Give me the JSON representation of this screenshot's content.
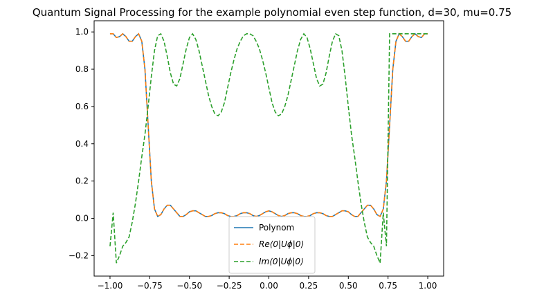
{
  "chart_data": {
    "type": "line",
    "title": "Quantum Signal Processing for the example polynomial even step function, d=30, mu=0.75",
    "xlabel": "",
    "ylabel": "",
    "xlim": [
      -1.1,
      1.1
    ],
    "ylim": [
      -0.31,
      1.06
    ],
    "x_ticks": [
      -1.0,
      -0.75,
      -0.5,
      -0.25,
      0.0,
      0.25,
      0.5,
      0.75,
      1.0
    ],
    "x_tick_labels": [
      "−1.00",
      "−0.75",
      "−0.50",
      "−0.25",
      "0.00",
      "0.25",
      "0.50",
      "0.75",
      "1.00"
    ],
    "y_ticks": [
      -0.2,
      0.0,
      0.2,
      0.4,
      0.6,
      0.8,
      1.0
    ],
    "y_tick_labels": [
      "−0.2",
      "0.0",
      "0.2",
      "0.4",
      "0.6",
      "0.8",
      "1.0"
    ],
    "grid": false,
    "legend_position": "bottom-center",
    "series": [
      {
        "name": "Polynom",
        "color": "#1f77b4",
        "style": "solid",
        "x": [
          -1.0,
          -0.98,
          -0.96,
          -0.94,
          -0.92,
          -0.9,
          -0.88,
          -0.86,
          -0.84,
          -0.82,
          -0.8,
          -0.78,
          -0.76,
          -0.74,
          -0.72,
          -0.7,
          -0.68,
          -0.66,
          -0.64,
          -0.62,
          -0.6,
          -0.58,
          -0.56,
          -0.54,
          -0.52,
          -0.5,
          -0.48,
          -0.46,
          -0.44,
          -0.42,
          -0.4,
          -0.38,
          -0.36,
          -0.34,
          -0.32,
          -0.3,
          -0.28,
          -0.26,
          -0.24,
          -0.22,
          -0.2,
          -0.18,
          -0.16,
          -0.14,
          -0.12,
          -0.1,
          -0.08,
          -0.06,
          -0.04,
          -0.02,
          0.0,
          0.02,
          0.04,
          0.06,
          0.08,
          0.1,
          0.12,
          0.14,
          0.16,
          0.18,
          0.2,
          0.22,
          0.24,
          0.26,
          0.28,
          0.3,
          0.32,
          0.34,
          0.36,
          0.38,
          0.4,
          0.42,
          0.44,
          0.46,
          0.48,
          0.5,
          0.52,
          0.54,
          0.56,
          0.58,
          0.6,
          0.62,
          0.64,
          0.66,
          0.68,
          0.7,
          0.72,
          0.74,
          0.76,
          0.78,
          0.8,
          0.82,
          0.84,
          0.86,
          0.88,
          0.9,
          0.92,
          0.94,
          0.96,
          0.98,
          1.0
        ],
        "y": [
          0.99,
          0.99,
          0.97,
          0.975,
          0.99,
          0.975,
          0.95,
          0.95,
          0.975,
          0.99,
          0.95,
          0.8,
          0.5,
          0.2,
          0.05,
          0.01,
          0.02,
          0.05,
          0.07,
          0.07,
          0.05,
          0.03,
          0.01,
          0.01,
          0.02,
          0.035,
          0.04,
          0.04,
          0.03,
          0.02,
          0.01,
          0.01,
          0.015,
          0.025,
          0.03,
          0.03,
          0.025,
          0.015,
          0.01,
          0.01,
          0.015,
          0.025,
          0.03,
          0.03,
          0.025,
          0.015,
          0.01,
          0.015,
          0.025,
          0.035,
          0.04,
          0.035,
          0.025,
          0.015,
          0.01,
          0.015,
          0.025,
          0.03,
          0.03,
          0.025,
          0.015,
          0.01,
          0.01,
          0.015,
          0.025,
          0.03,
          0.03,
          0.025,
          0.015,
          0.01,
          0.01,
          0.02,
          0.03,
          0.04,
          0.04,
          0.035,
          0.02,
          0.01,
          0.01,
          0.03,
          0.05,
          0.07,
          0.07,
          0.05,
          0.02,
          0.01,
          0.05,
          0.2,
          0.5,
          0.8,
          0.95,
          0.99,
          0.975,
          0.95,
          0.95,
          0.975,
          0.99,
          0.975,
          0.97,
          0.99,
          0.99
        ]
      },
      {
        "name": "Re⟨0|Uϕ|0⟩",
        "color": "#ff7f0e",
        "style": "dashed",
        "x": [
          -1.0,
          -0.98,
          -0.96,
          -0.94,
          -0.92,
          -0.9,
          -0.88,
          -0.86,
          -0.84,
          -0.82,
          -0.8,
          -0.78,
          -0.76,
          -0.74,
          -0.72,
          -0.7,
          -0.68,
          -0.66,
          -0.64,
          -0.62,
          -0.6,
          -0.58,
          -0.56,
          -0.54,
          -0.52,
          -0.5,
          -0.48,
          -0.46,
          -0.44,
          -0.42,
          -0.4,
          -0.38,
          -0.36,
          -0.34,
          -0.32,
          -0.3,
          -0.28,
          -0.26,
          -0.24,
          -0.22,
          -0.2,
          -0.18,
          -0.16,
          -0.14,
          -0.12,
          -0.1,
          -0.08,
          -0.06,
          -0.04,
          -0.02,
          0.0,
          0.02,
          0.04,
          0.06,
          0.08,
          0.1,
          0.12,
          0.14,
          0.16,
          0.18,
          0.2,
          0.22,
          0.24,
          0.26,
          0.28,
          0.3,
          0.32,
          0.34,
          0.36,
          0.38,
          0.4,
          0.42,
          0.44,
          0.46,
          0.48,
          0.5,
          0.52,
          0.54,
          0.56,
          0.58,
          0.6,
          0.62,
          0.64,
          0.66,
          0.68,
          0.7,
          0.72,
          0.74,
          0.76,
          0.78,
          0.8,
          0.82,
          0.84,
          0.86,
          0.88,
          0.9,
          0.92,
          0.94,
          0.96,
          0.98,
          1.0
        ],
        "y": [
          0.99,
          0.99,
          0.97,
          0.975,
          0.99,
          0.975,
          0.95,
          0.95,
          0.975,
          0.99,
          0.95,
          0.8,
          0.5,
          0.2,
          0.05,
          0.01,
          0.02,
          0.05,
          0.07,
          0.07,
          0.05,
          0.03,
          0.01,
          0.01,
          0.02,
          0.035,
          0.04,
          0.04,
          0.03,
          0.02,
          0.01,
          0.01,
          0.015,
          0.025,
          0.03,
          0.03,
          0.025,
          0.015,
          0.01,
          0.01,
          0.015,
          0.025,
          0.03,
          0.03,
          0.025,
          0.015,
          0.01,
          0.015,
          0.025,
          0.035,
          0.04,
          0.035,
          0.025,
          0.015,
          0.01,
          0.015,
          0.025,
          0.03,
          0.03,
          0.025,
          0.015,
          0.01,
          0.01,
          0.015,
          0.025,
          0.03,
          0.03,
          0.025,
          0.015,
          0.01,
          0.01,
          0.02,
          0.03,
          0.04,
          0.04,
          0.035,
          0.02,
          0.01,
          0.01,
          0.03,
          0.05,
          0.07,
          0.07,
          0.05,
          0.02,
          0.01,
          0.05,
          0.2,
          0.5,
          0.8,
          0.95,
          0.99,
          0.975,
          0.95,
          0.95,
          0.975,
          0.99,
          0.975,
          0.97,
          0.99,
          0.99
        ]
      },
      {
        "name": "Im⟨0|Uϕ|0⟩",
        "color": "#2ca02c",
        "style": "dashed",
        "x": [
          -1.0,
          -0.98,
          -0.96,
          -0.94,
          -0.92,
          -0.9,
          -0.88,
          -0.86,
          -0.84,
          -0.82,
          -0.8,
          -0.78,
          -0.76,
          -0.74,
          -0.72,
          -0.7,
          -0.68,
          -0.66,
          -0.64,
          -0.62,
          -0.6,
          -0.58,
          -0.56,
          -0.54,
          -0.52,
          -0.5,
          -0.48,
          -0.46,
          -0.44,
          -0.42,
          -0.4,
          -0.38,
          -0.36,
          -0.34,
          -0.32,
          -0.3,
          -0.28,
          -0.26,
          -0.24,
          -0.22,
          -0.2,
          -0.18,
          -0.16,
          -0.14,
          -0.12,
          -0.1,
          -0.08,
          -0.06,
          -0.04,
          -0.02,
          0.0,
          0.02,
          0.04,
          0.06,
          0.08,
          0.1,
          0.12,
          0.14,
          0.16,
          0.18,
          0.2,
          0.22,
          0.24,
          0.26,
          0.28,
          0.3,
          0.32,
          0.34,
          0.36,
          0.38,
          0.4,
          0.42,
          0.44,
          0.46,
          0.48,
          0.5,
          0.52,
          0.54,
          0.56,
          0.58,
          0.6,
          0.62,
          0.64,
          0.66,
          0.68,
          0.7,
          0.72,
          0.74,
          0.76,
          0.78,
          0.8,
          0.82,
          0.84,
          0.86,
          0.88,
          0.9,
          0.92,
          0.94,
          0.96,
          0.98,
          1.0
        ],
        "y": [
          -0.15,
          0.03,
          -0.24,
          -0.2,
          -0.15,
          -0.13,
          -0.1,
          -0.02,
          0.08,
          0.2,
          0.33,
          0.45,
          0.6,
          0.76,
          0.9,
          0.98,
          0.99,
          0.95,
          0.87,
          0.78,
          0.72,
          0.71,
          0.75,
          0.83,
          0.91,
          0.97,
          0.99,
          0.96,
          0.9,
          0.82,
          0.74,
          0.66,
          0.6,
          0.56,
          0.55,
          0.57,
          0.62,
          0.7,
          0.78,
          0.85,
          0.91,
          0.95,
          0.98,
          0.99,
          0.99,
          0.98,
          0.95,
          0.91,
          0.85,
          0.78,
          0.7,
          0.62,
          0.57,
          0.55,
          0.56,
          0.6,
          0.66,
          0.74,
          0.82,
          0.9,
          0.96,
          0.99,
          0.97,
          0.91,
          0.83,
          0.75,
          0.71,
          0.72,
          0.78,
          0.87,
          0.95,
          0.99,
          0.98,
          0.9,
          0.76,
          0.6,
          0.45,
          0.33,
          0.2,
          0.08,
          -0.02,
          -0.1,
          -0.13,
          -0.15,
          -0.2,
          -0.24,
          0.03,
          -0.15,
          0.99,
          0.99,
          0.99,
          0.99,
          0.99,
          0.99,
          0.99,
          0.99,
          0.99,
          0.99,
          0.99,
          0.99,
          0.99
        ]
      }
    ]
  }
}
